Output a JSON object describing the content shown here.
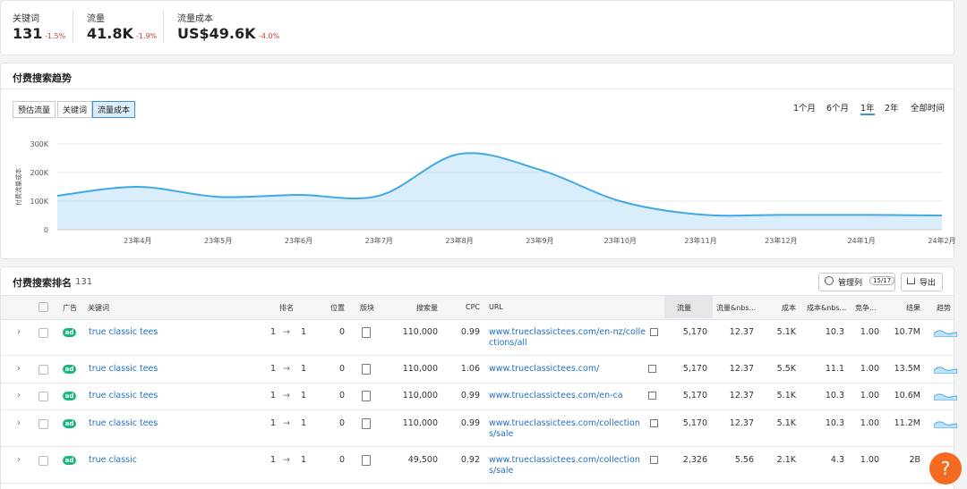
{
  "metrics": [
    {
      "label": "关键词",
      "value": "131",
      "change": "-1.5%"
    },
    {
      "label": "流量",
      "value": "41.8K",
      "change": "-1.9%"
    },
    {
      "label": "流量成本",
      "value": "US$49.6K",
      "change": "-4.0%"
    }
  ],
  "trend": {
    "title": "付费搜索趋势",
    "tabs": [
      "预估流量",
      "关键词",
      "流量成本"
    ],
    "ranges": [
      "1个月",
      "6个月",
      "1年",
      "2年",
      "全部时间"
    ]
  },
  "chart_data": {
    "type": "area",
    "y_label": "付费流量成本",
    "categories": [
      null,
      "23年4月",
      "23年5月",
      "23年6月",
      "23年7月",
      "23年8月",
      "23年9月",
      "23年10月",
      "23年11月",
      "23年12月",
      "24年1月",
      "24年2月"
    ],
    "values": [
      119000,
      150000,
      115000,
      122000,
      119000,
      265000,
      210000,
      100000,
      53000,
      52000,
      52000,
      50000
    ],
    "color": "#3fa9e8",
    "ylim": [
      0,
      300000
    ],
    "yticks": [
      0,
      {
        "value": 100000,
        "label": "100K"
      },
      {
        "value": 200000,
        "label": "200K"
      },
      {
        "value": 300000,
        "label": "300K"
      }
    ],
    "grid": true
  },
  "rankings": {
    "title": "付费搜索排名",
    "count": "131",
    "manage": "管理列",
    "manage_count": "15/17",
    "export": "导出",
    "columns": [
      "广告",
      "关键词",
      "排名",
      "位置",
      "版块",
      "搜索量",
      "CPC",
      "URL",
      "流量",
      "流量&nbs...",
      "成本",
      "成本&nbs...",
      "竞争...",
      "结果",
      "趋势"
    ],
    "rows": [
      {
        "ad": "ad",
        "keyword": "true classic tees",
        "rank_from": "1",
        "rank_to": "1",
        "position": "0",
        "volume": "110,000",
        "cpc": "0.99",
        "url": "www.trueclassictees.com/en-nz/collections/all",
        "traffic": "5,170",
        "traffic_pct": "12.37",
        "cost": "5.1K",
        "cost_pct": "10.3",
        "competition": "1.00",
        "results": "10.7M"
      },
      {
        "ad": "ad",
        "keyword": "true classic tees",
        "rank_from": "1",
        "rank_to": "1",
        "position": "0",
        "volume": "110,000",
        "cpc": "1.06",
        "url": "www.trueclassictees.com/",
        "traffic": "5,170",
        "traffic_pct": "12.37",
        "cost": "5.5K",
        "cost_pct": "11.1",
        "competition": "1.00",
        "results": "13.5M"
      },
      {
        "ad": "ad",
        "keyword": "true classic tees",
        "rank_from": "1",
        "rank_to": "1",
        "position": "0",
        "volume": "110,000",
        "cpc": "0.99",
        "url": "www.trueclassictees.com/en-ca",
        "traffic": "5,170",
        "traffic_pct": "12.37",
        "cost": "5.1K",
        "cost_pct": "10.3",
        "competition": "1.00",
        "results": "10.6M"
      },
      {
        "ad": "ad",
        "keyword": "true classic tees",
        "rank_from": "1",
        "rank_to": "1",
        "position": "0",
        "volume": "110,000",
        "cpc": "0.99",
        "url": "www.trueclassictees.com/collections/sale",
        "traffic": "5,170",
        "traffic_pct": "12.37",
        "cost": "5.1K",
        "cost_pct": "10.3",
        "competition": "1.00",
        "results": "11.2M"
      },
      {
        "ad": "ad",
        "keyword": "true classic",
        "rank_from": "1",
        "rank_to": "1",
        "position": "0",
        "volume": "49,500",
        "cpc": "0.92",
        "url": "www.trueclassictees.com/collections/sale",
        "traffic": "2,326",
        "traffic_pct": "5.56",
        "cost": "2.1K",
        "cost_pct": "4.3",
        "competition": "1.00",
        "results": "2B"
      }
    ]
  },
  "help": "?"
}
